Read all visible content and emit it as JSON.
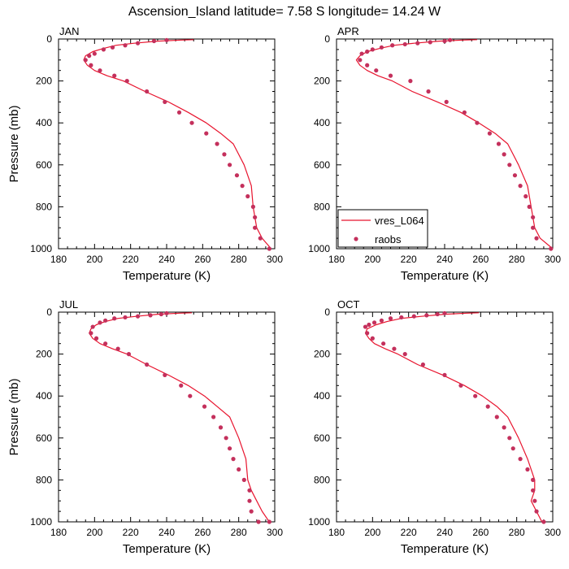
{
  "figure_title": "Ascension_Island  latitude= 7.58 S longitude= 14.24 W",
  "colors": {
    "model_line": "#e8142e",
    "obs_marker": "#c4305c",
    "axis": "#000000"
  },
  "legend": {
    "line_label": "vres_L064",
    "marker_label": "raobs"
  },
  "chart_data": [
    {
      "type": "line",
      "panel": "JAN",
      "xlabel": "Temperature (K)",
      "ylabel": "Pressure (mb)",
      "xlim": [
        180,
        300
      ],
      "ylim": [
        0,
        1000
      ],
      "y_inverted": true,
      "xticks": [
        180,
        200,
        220,
        240,
        260,
        280,
        300
      ],
      "yticks": [
        0,
        200,
        400,
        600,
        800,
        1000
      ],
      "series": [
        {
          "name": "vres_L064",
          "style": "line",
          "x": [
            255,
            248,
            235,
            222,
            212,
            205,
            199,
            195,
            194,
            196,
            200,
            207,
            216,
            228,
            241,
            252,
            262,
            270,
            277,
            283,
            287,
            288,
            289,
            290,
            293,
            298
          ],
          "y": [
            3,
            5,
            10,
            20,
            30,
            45,
            60,
            80,
            100,
            125,
            150,
            175,
            200,
            250,
            300,
            350,
            400,
            450,
            500,
            600,
            700,
            800,
            850,
            900,
            950,
            1000
          ]
        },
        {
          "name": "raobs",
          "style": "marker",
          "x": [
            240,
            233,
            224,
            217,
            210,
            205,
            200,
            197,
            195,
            198,
            203,
            211,
            218,
            229,
            239,
            247,
            254,
            262,
            268,
            272,
            275,
            279,
            282,
            285,
            288,
            289,
            289,
            292,
            297
          ],
          "y": [
            5,
            10,
            20,
            30,
            40,
            50,
            70,
            80,
            100,
            125,
            150,
            175,
            200,
            250,
            300,
            350,
            400,
            450,
            500,
            550,
            600,
            650,
            700,
            750,
            800,
            850,
            900,
            950,
            1000
          ]
        }
      ]
    },
    {
      "type": "line",
      "panel": "APR",
      "xlabel": "Temperature (K)",
      "ylabel": "",
      "xlim": [
        180,
        300
      ],
      "ylim": [
        0,
        1000
      ],
      "y_inverted": true,
      "xticks": [
        180,
        200,
        220,
        240,
        260,
        280,
        300
      ],
      "yticks": [
        0,
        200,
        400,
        600,
        800,
        1000
      ],
      "series": [
        {
          "name": "vres_L064",
          "style": "line",
          "x": [
            258,
            250,
            237,
            223,
            212,
            204,
            197,
            193,
            191,
            193,
            197,
            203,
            211,
            222,
            236,
            249,
            259,
            268,
            275,
            281,
            286,
            288,
            289,
            290,
            293,
            300
          ],
          "y": [
            3,
            5,
            10,
            20,
            30,
            45,
            60,
            80,
            100,
            125,
            150,
            175,
            200,
            250,
            300,
            350,
            400,
            450,
            500,
            600,
            700,
            800,
            850,
            900,
            950,
            1000
          ]
        },
        {
          "name": "raobs",
          "style": "marker",
          "x": [
            243,
            240,
            232,
            225,
            218,
            211,
            205,
            200,
            197,
            194,
            193,
            197,
            202,
            210,
            221,
            231,
            241,
            251,
            258,
            265,
            270,
            273,
            276,
            279,
            282,
            285,
            287,
            289,
            289,
            291,
            299
          ],
          "y": [
            5,
            10,
            15,
            20,
            25,
            30,
            40,
            50,
            60,
            70,
            100,
            125,
            150,
            175,
            200,
            250,
            300,
            350,
            400,
            450,
            500,
            550,
            600,
            650,
            700,
            750,
            800,
            850,
            900,
            950,
            1000
          ]
        }
      ]
    },
    {
      "type": "line",
      "panel": "JUL",
      "xlabel": "Temperature (K)",
      "ylabel": "Pressure (mb)",
      "xlim": [
        180,
        300
      ],
      "ylim": [
        0,
        1000
      ],
      "y_inverted": true,
      "xticks": [
        180,
        200,
        220,
        240,
        260,
        280,
        300
      ],
      "yticks": [
        0,
        200,
        400,
        600,
        800,
        1000
      ],
      "series": [
        {
          "name": "vres_L064",
          "style": "line",
          "x": [
            254,
            247,
            235,
            223,
            213,
            206,
            201,
            198,
            197,
            199,
            203,
            210,
            218,
            229,
            241,
            252,
            261,
            268,
            275,
            280,
            284,
            285,
            287,
            290,
            293,
            297
          ],
          "y": [
            3,
            5,
            10,
            20,
            30,
            45,
            60,
            80,
            100,
            125,
            150,
            175,
            200,
            250,
            300,
            350,
            400,
            450,
            500,
            600,
            700,
            800,
            850,
            900,
            950,
            1000
          ]
        },
        {
          "name": "raobs",
          "style": "marker",
          "x": [
            240,
            237,
            231,
            224,
            217,
            211,
            206,
            203,
            199,
            198,
            201,
            206,
            213,
            219,
            229,
            239,
            248,
            253,
            261,
            266,
            270,
            273,
            275,
            277,
            280,
            283,
            286,
            286,
            287,
            291,
            297
          ],
          "y": [
            5,
            10,
            15,
            20,
            25,
            30,
            40,
            50,
            70,
            100,
            125,
            150,
            175,
            200,
            250,
            300,
            350,
            400,
            450,
            500,
            550,
            600,
            650,
            700,
            750,
            800,
            850,
            900,
            950,
            1000,
            1000
          ]
        }
      ]
    },
    {
      "type": "line",
      "panel": "OCT",
      "xlabel": "Temperature (K)",
      "ylabel": "",
      "xlim": [
        180,
        300
      ],
      "ylim": [
        0,
        1000
      ],
      "y_inverted": true,
      "xticks": [
        180,
        200,
        220,
        240,
        260,
        280,
        300
      ],
      "yticks": [
        0,
        200,
        400,
        600,
        800,
        1000
      ],
      "series": [
        {
          "name": "vres_L064",
          "style": "line",
          "x": [
            259,
            252,
            240,
            227,
            216,
            208,
            202,
            197,
            196,
            198,
            201,
            207,
            214,
            225,
            239,
            251,
            261,
            269,
            275,
            281,
            286,
            290,
            290,
            288,
            291,
            294
          ],
          "y": [
            3,
            5,
            10,
            20,
            30,
            45,
            60,
            80,
            100,
            125,
            150,
            175,
            200,
            250,
            300,
            350,
            400,
            450,
            500,
            600,
            700,
            800,
            850,
            900,
            950,
            1000
          ]
        },
        {
          "name": "raobs",
          "style": "marker",
          "x": [
            240,
            236,
            230,
            223,
            216,
            210,
            205,
            201,
            198,
            196,
            197,
            200,
            206,
            212,
            218,
            228,
            240,
            249,
            257,
            264,
            269,
            273,
            276,
            278,
            282,
            286,
            289,
            289,
            290,
            291,
            295
          ],
          "y": [
            5,
            10,
            15,
            20,
            25,
            30,
            40,
            50,
            60,
            70,
            100,
            125,
            150,
            175,
            200,
            250,
            300,
            350,
            400,
            450,
            500,
            550,
            600,
            650,
            700,
            750,
            800,
            850,
            900,
            950,
            1000
          ]
        }
      ]
    }
  ]
}
